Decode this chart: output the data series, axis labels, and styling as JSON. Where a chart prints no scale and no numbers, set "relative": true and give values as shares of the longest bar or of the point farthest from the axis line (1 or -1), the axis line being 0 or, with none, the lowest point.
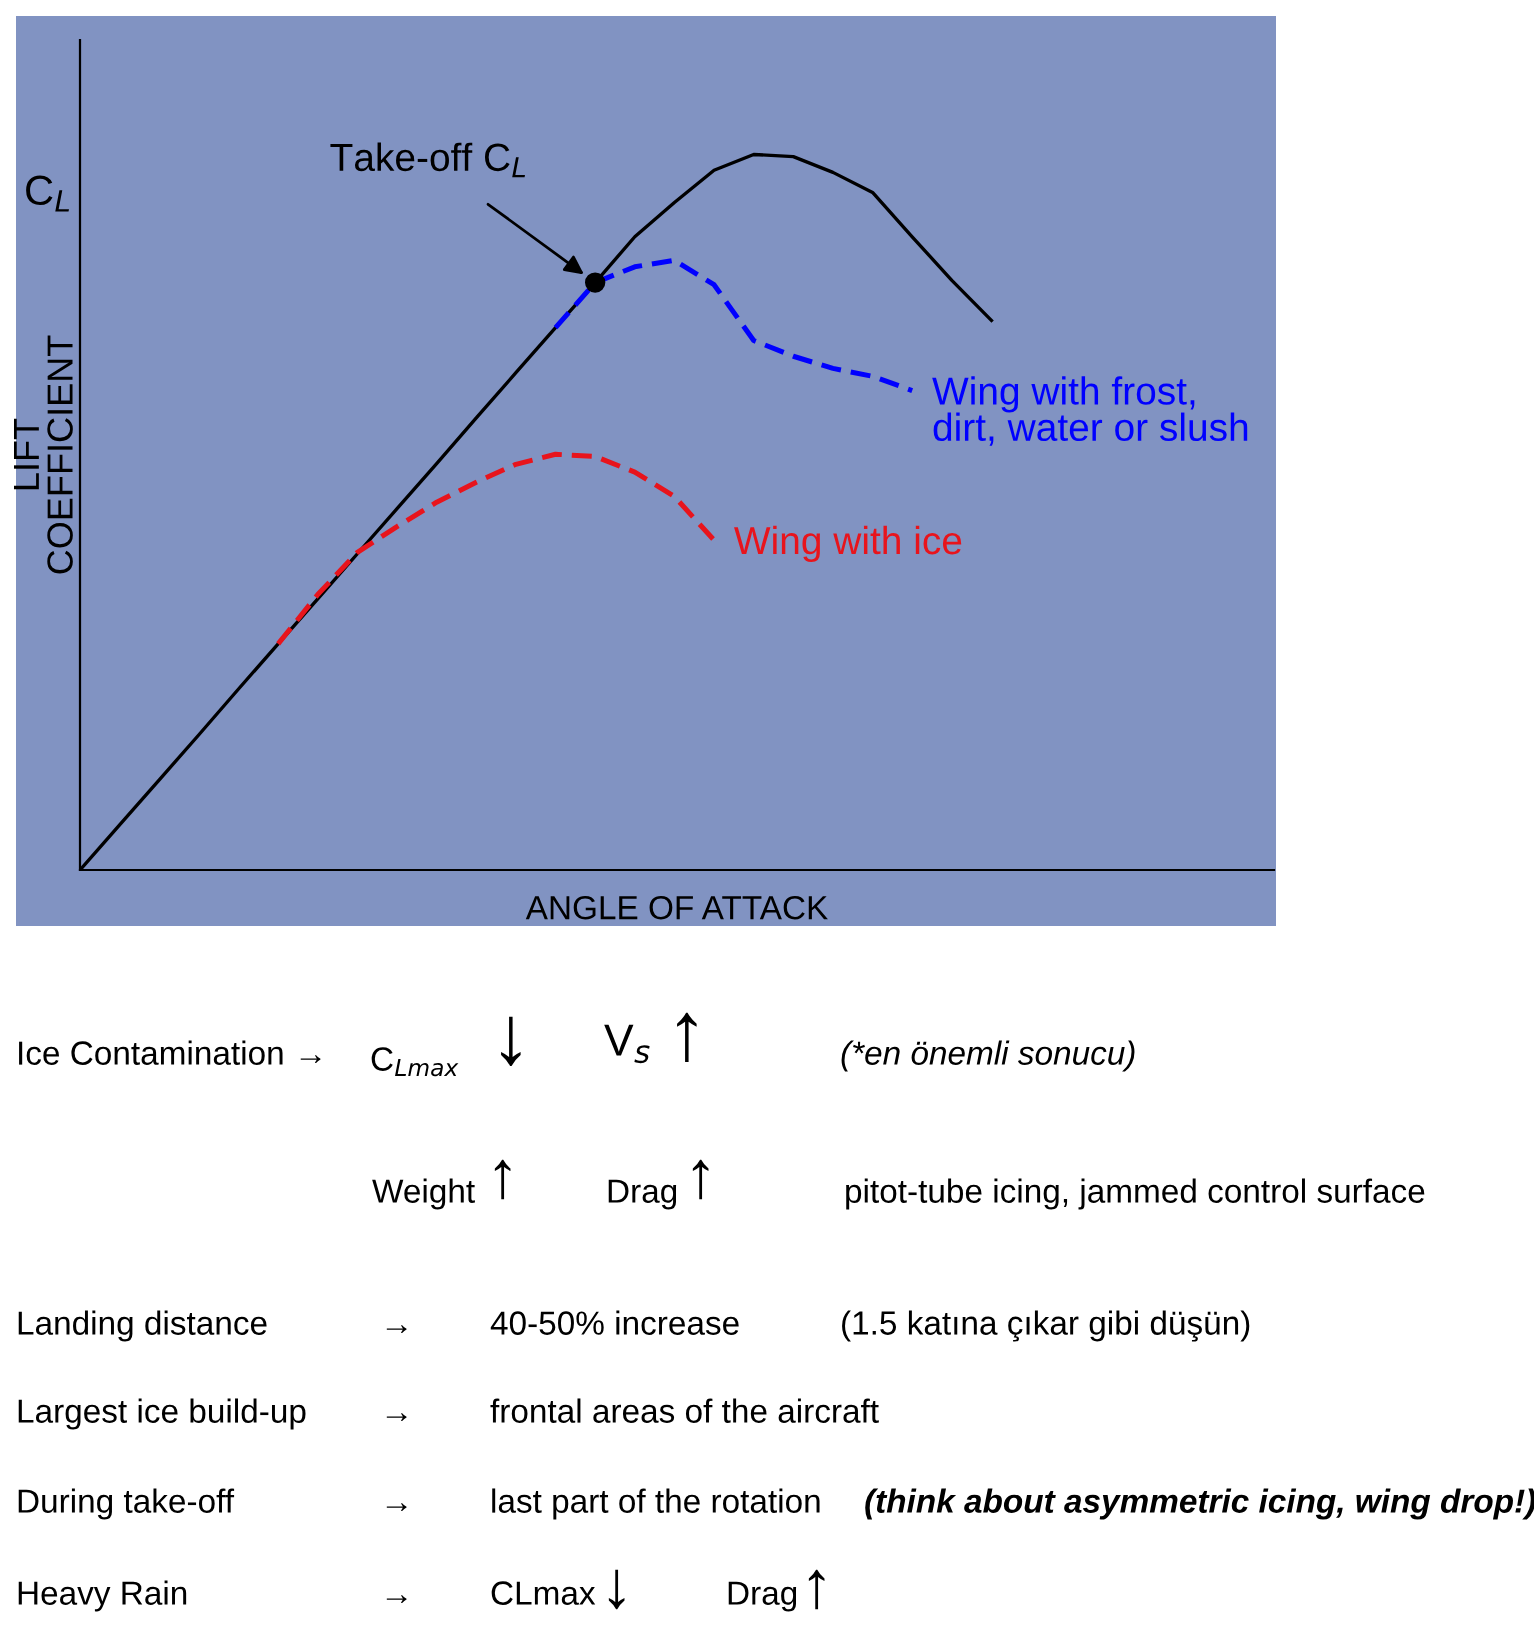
{
  "chart_data": {
    "type": "line",
    "relative": true,
    "xlabel": "ANGLE OF ATTACK",
    "ylabel": "LIFT\nCOEFFICIENT",
    "legend": false,
    "grid": false,
    "categories": [
      null,
      null,
      null,
      null,
      null,
      null,
      null,
      null,
      null,
      null,
      null,
      null,
      null,
      null,
      null,
      null,
      null,
      null,
      null,
      null,
      null,
      null,
      null,
      null
    ],
    "series": [
      {
        "color": "#000000",
        "line_style": "solid",
        "values": [
          0,
          0.063,
          0.126,
          0.189,
          0.253,
          0.316,
          0.379,
          0.442,
          0.505,
          0.568,
          0.632,
          0.695,
          0.758,
          0.821,
          0.885,
          0.933,
          0.978,
          1.0,
          0.997,
          0.975,
          0.947,
          0.885,
          0.824,
          0.768
        ]
      },
      {
        "name": "Wing with frost,\ndirt, water or slush",
        "color": "#0000ff",
        "line_style": "dashed",
        "values": [
          null,
          null,
          null,
          null,
          null,
          null,
          null,
          null,
          null,
          null,
          null,
          null,
          0.758,
          0.821,
          0.843,
          0.852,
          0.818,
          0.74,
          0.718,
          0.701,
          0.69,
          0.67,
          null,
          null
        ]
      },
      {
        "name": "Wing with ice",
        "color": "#e8141c",
        "line_style": "dashed",
        "values": [
          null,
          null,
          null,
          null,
          null,
          0.316,
          0.385,
          0.444,
          0.48,
          0.514,
          0.542,
          0.567,
          0.581,
          0.578,
          0.556,
          0.522,
          0.461,
          null,
          null,
          null,
          null,
          null,
          null,
          null
        ]
      }
    ],
    "annotations": [
      "C$_{L}$",
      "Take-off C$_{L}$",
      "Ice Contamination →",
      "C$_{Lmax}$",
      "↓",
      "V$_{s}$",
      "↑",
      "(*en önemli sonucu)",
      "Weight",
      "↑",
      "Drag",
      "↑",
      "pitot-tube icing, jammed control surface",
      "Landing distance",
      "→",
      "40-50% increase",
      "(1.5 katına çıkar gibi düşün)",
      "Largest ice build-up",
      "→",
      "frontal areas of the aircraft",
      "During take-off",
      "→",
      "last part of the rotation",
      "(think about asymmetric icing, wing drop!)",
      "Heavy Rain",
      "→",
      "CLmax",
      "↓",
      "Drag",
      "↑"
    ]
  }
}
